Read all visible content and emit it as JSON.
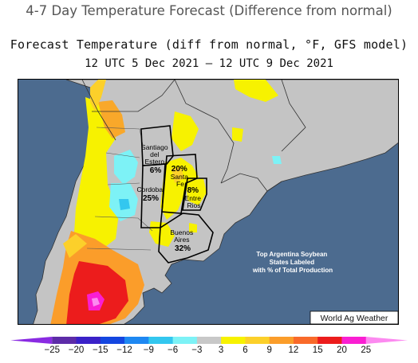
{
  "page_title": "4-7 Day Temperature Forecast (Difference from normal)",
  "map": {
    "title": "Forecast Temperature (diff from normal, °F, GFS model)",
    "subtitle": "12 UTC 5 Dec 2021 — 12 UTC 9 Dec 2021",
    "provinces": [
      {
        "name_lines": [
          "Santiago",
          "del",
          "Estero"
        ],
        "share": "6%"
      },
      {
        "name_lines": [
          "Santa",
          "Fe"
        ],
        "share": "20%"
      },
      {
        "name_lines": [
          "Cordoba"
        ],
        "share": "25%"
      },
      {
        "name_lines": [
          "Entre",
          "Rios"
        ],
        "share": "8%"
      },
      {
        "name_lines": [
          "Buenos",
          "Aires"
        ],
        "share": "32%"
      }
    ],
    "note_lines": [
      "Top Argentina Soybean",
      "States Labeled",
      "with % of Total Production"
    ],
    "credit": "World Ag Weather"
  },
  "colorbar": {
    "ticks": [
      "−25",
      "−20",
      "−15",
      "−12",
      "−9",
      "−6",
      "−3",
      "3",
      "6",
      "9",
      "12",
      "15",
      "20",
      "25"
    ],
    "colors": [
      "#8a2be2",
      "#5d2ca8",
      "#3a21c8",
      "#1446e0",
      "#1e88f2",
      "#33c7ef",
      "#7df2f6",
      "#c8c8c8",
      "#f7f200",
      "#fcd02a",
      "#fb9d2a",
      "#f96a2a",
      "#ec1c1c",
      "#fa1ed2",
      "#fc8af0"
    ]
  },
  "colors": {
    "ocean": "#4c6b8f",
    "land_neutral": "#c4c4c4",
    "text_note": "#ffffff"
  }
}
